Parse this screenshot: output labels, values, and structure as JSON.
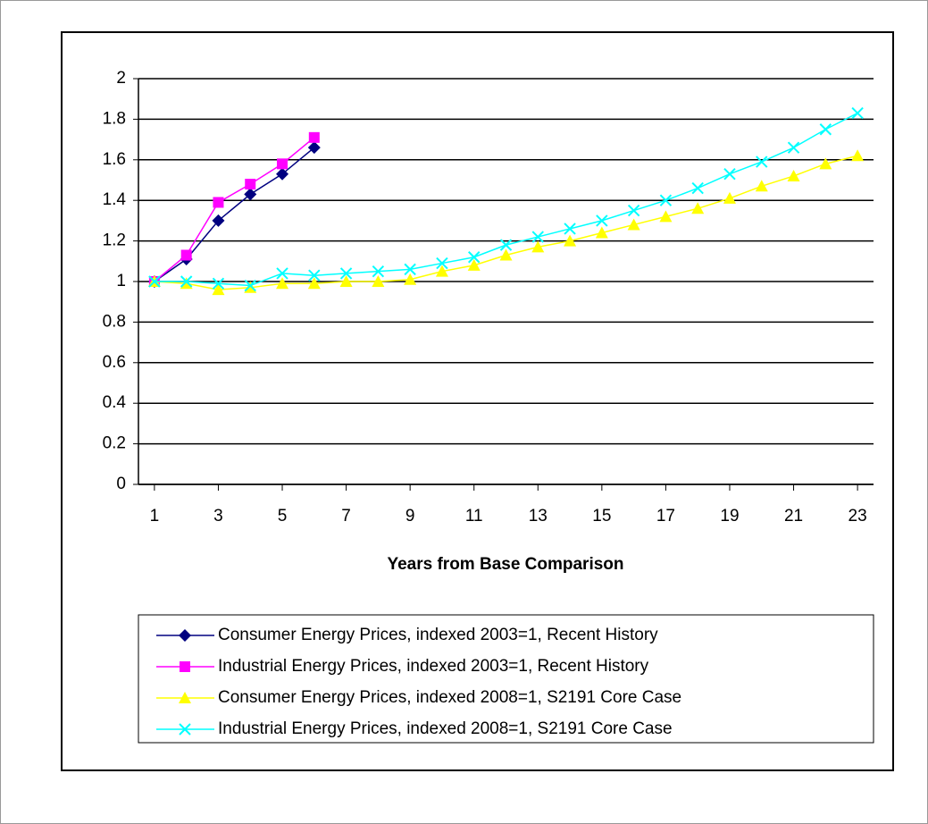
{
  "chart_data": {
    "type": "line",
    "x_label": "Years from Base Comparison",
    "x": [
      1,
      2,
      3,
      4,
      5,
      6,
      7,
      8,
      9,
      10,
      11,
      12,
      13,
      14,
      15,
      16,
      17,
      18,
      19,
      20,
      21,
      22,
      23
    ],
    "xlim": [
      0.5,
      23.5
    ],
    "xticks": [
      1,
      3,
      5,
      7,
      9,
      11,
      13,
      15,
      17,
      19,
      21,
      23
    ],
    "ylim": [
      0,
      2
    ],
    "yticks": [
      0,
      0.2,
      0.4,
      0.6,
      0.8,
      1,
      1.2,
      1.4,
      1.6,
      1.8,
      2
    ],
    "grid": true,
    "legend": "bottom",
    "series": [
      {
        "name": "Consumer Energy Prices, indexed 2003=1, Recent History",
        "color": "#000080",
        "marker": "diamond",
        "values": [
          1,
          1.11,
          1.3,
          1.43,
          1.53,
          1.66,
          null,
          null,
          null,
          null,
          null,
          null,
          null,
          null,
          null,
          null,
          null,
          null,
          null,
          null,
          null,
          null,
          null
        ]
      },
      {
        "name": "Industrial Energy Prices, indexed 2003=1, Recent History",
        "color": "#ff00ff",
        "marker": "square",
        "values": [
          1,
          1.13,
          1.39,
          1.48,
          1.58,
          1.71,
          null,
          null,
          null,
          null,
          null,
          null,
          null,
          null,
          null,
          null,
          null,
          null,
          null,
          null,
          null,
          null,
          null
        ]
      },
      {
        "name": "Consumer Energy Prices, indexed 2008=1, S2191 Core Case",
        "color": "#ffff00",
        "marker": "triangle",
        "values": [
          1,
          0.99,
          0.96,
          0.97,
          0.99,
          0.99,
          1,
          1,
          1.01,
          1.05,
          1.08,
          1.13,
          1.17,
          1.2,
          1.24,
          1.28,
          1.32,
          1.36,
          1.41,
          1.47,
          1.52,
          1.58,
          1.62
        ]
      },
      {
        "name": "Industrial Energy Prices, indexed 2008=1, S2191 Core Case",
        "color": "#00ffff",
        "marker": "cross",
        "values": [
          1,
          1,
          0.99,
          0.98,
          1.04,
          1.03,
          1.04,
          1.05,
          1.06,
          1.09,
          1.12,
          1.18,
          1.22,
          1.26,
          1.3,
          1.35,
          1.4,
          1.46,
          1.53,
          1.59,
          1.66,
          1.75,
          1.83
        ]
      }
    ]
  }
}
